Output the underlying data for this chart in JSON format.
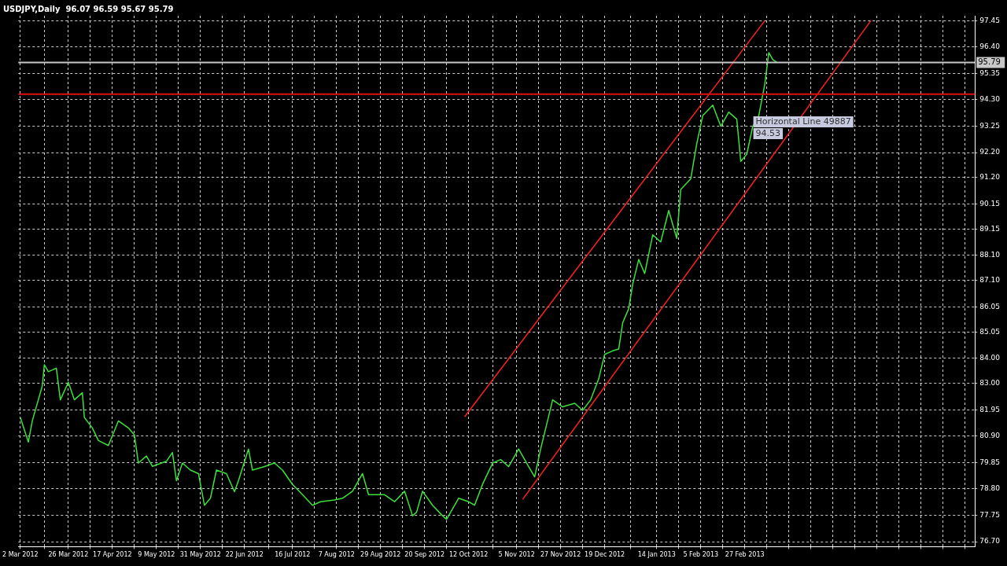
{
  "chart_data": {
    "type": "line",
    "title": "USDJPY,Daily  96.07 96.59 95.67 95.79",
    "xlim": [
      "2012-03-01",
      "2013-06-22"
    ],
    "ylim": [
      76.5,
      97.65
    ],
    "xticks": [
      {
        "value": "2012-03-02",
        "label": "2 Mar 2012"
      },
      {
        "value": "2012-03-14",
        "label": null
      },
      {
        "value": "2012-03-26",
        "label": "26 Mar 2012"
      },
      {
        "value": "2012-04-06",
        "label": null
      },
      {
        "value": "2012-04-17",
        "label": "17 Apr 2012"
      },
      {
        "value": "2012-04-28",
        "label": null
      },
      {
        "value": "2012-05-09",
        "label": "9 May 2012"
      },
      {
        "value": "2012-05-20",
        "label": null
      },
      {
        "value": "2012-05-31",
        "label": "31 May 2012"
      },
      {
        "value": "2012-06-11",
        "label": null
      },
      {
        "value": "2012-06-22",
        "label": "22 Jun 2012"
      },
      {
        "value": "2012-07-04",
        "label": null
      },
      {
        "value": "2012-07-16",
        "label": "16 Jul 2012"
      },
      {
        "value": "2012-07-27",
        "label": null
      },
      {
        "value": "2012-08-07",
        "label": "7 Aug 2012"
      },
      {
        "value": "2012-08-18",
        "label": null
      },
      {
        "value": "2012-08-29",
        "label": "29 Aug 2012"
      },
      {
        "value": "2012-09-09",
        "label": null
      },
      {
        "value": "2012-09-20",
        "label": "20 Sep 2012"
      },
      {
        "value": "2012-10-01",
        "label": null
      },
      {
        "value": "2012-10-12",
        "label": "12 Oct 2012"
      },
      {
        "value": "2012-10-24",
        "label": null
      },
      {
        "value": "2012-11-05",
        "label": "5 Nov 2012"
      },
      {
        "value": "2012-11-16",
        "label": null
      },
      {
        "value": "2012-11-27",
        "label": "27 Nov 2012"
      },
      {
        "value": "2012-12-08",
        "label": null
      },
      {
        "value": "2012-12-19",
        "label": "19 Dec 2012"
      },
      {
        "value": "2013-01-01",
        "label": null
      },
      {
        "value": "2013-01-14",
        "label": "14 Jan 2013"
      },
      {
        "value": "2013-01-25",
        "label": null
      },
      {
        "value": "2013-02-05",
        "label": "5 Feb 2013"
      },
      {
        "value": "2013-02-16",
        "label": null
      },
      {
        "value": "2013-02-27",
        "label": "27 Feb 2013"
      },
      {
        "value": "2013-03-10",
        "label": null
      },
      {
        "value": "2013-03-21",
        "label": null
      },
      {
        "value": "2013-04-01",
        "label": null
      },
      {
        "value": "2013-04-12",
        "label": null
      },
      {
        "value": "2013-04-23",
        "label": null
      },
      {
        "value": "2013-05-04",
        "label": null
      },
      {
        "value": "2013-05-15",
        "label": null
      },
      {
        "value": "2013-05-26",
        "label": null
      },
      {
        "value": "2013-06-06",
        "label": null
      },
      {
        "value": "2013-06-17",
        "label": null
      }
    ],
    "yticks": [
      {
        "value": 76.7,
        "label": "76.70"
      },
      77.75,
      {
        "value": 78.8,
        "label": "78.80"
      },
      79.85,
      {
        "value": 80.9,
        "label": "80.90"
      },
      81.95,
      {
        "value": 83,
        "label": "83.00"
      },
      {
        "value": 84,
        "label": "84.00"
      },
      85.05,
      86.05,
      {
        "value": 87.1,
        "label": "87.10"
      },
      {
        "value": 88.1,
        "label": "88.10"
      },
      89.15,
      90.15,
      {
        "value": 91.2,
        "label": "91.20"
      },
      {
        "value": 92.2,
        "label": "92.20"
      },
      93.25,
      {
        "value": 94.3,
        "label": "94.30"
      },
      95.35,
      {
        "value": 96.4,
        "label": "96.40"
      },
      97.45
    ],
    "grid": true,
    "legend": false,
    "marker": "none",
    "line_style": "solid",
    "series": [
      {
        "color": "#3ce03c",
        "x": [
          "2012-03-02",
          "2012-03-06",
          "2012-03-08",
          "2012-03-11",
          "2012-03-13",
          "2012-03-14",
          "2012-03-16",
          "2012-03-20",
          "2012-03-22",
          "2012-03-26",
          "2012-03-29",
          "2012-04-02",
          "2012-04-03",
          "2012-04-07",
          "2012-04-10",
          "2012-04-15",
          "2012-04-20",
          "2012-04-25",
          "2012-04-28",
          "2012-04-30",
          "2012-05-04",
          "2012-05-07",
          "2012-05-14",
          "2012-05-17",
          "2012-05-19",
          "2012-05-22",
          "2012-05-26",
          "2012-05-30",
          "2012-06-02",
          "2012-06-05",
          "2012-06-08",
          "2012-06-13",
          "2012-06-17",
          "2012-06-19",
          "2012-06-24",
          "2012-06-26",
          "2012-07-02",
          "2012-07-07",
          "2012-07-11",
          "2012-07-16",
          "2012-07-21",
          "2012-07-26",
          "2012-07-30",
          "2012-08-06",
          "2012-08-10",
          "2012-08-15",
          "2012-08-20",
          "2012-08-23",
          "2012-08-31",
          "2012-09-05",
          "2012-09-10",
          "2012-09-14",
          "2012-09-16",
          "2012-09-19",
          "2012-09-24",
          "2012-09-29",
          "2012-10-01",
          "2012-10-07",
          "2012-10-12",
          "2012-10-15",
          "2012-10-19",
          "2012-10-24",
          "2012-10-28",
          "2012-11-01",
          "2012-11-06",
          "2012-11-11",
          "2012-11-14",
          "2012-11-17",
          "2012-11-20",
          "2012-11-23",
          "2012-11-28",
          "2012-12-04",
          "2012-12-08",
          "2012-12-12",
          "2012-12-16",
          "2012-12-19",
          "2012-12-23",
          "2012-12-26",
          "2012-12-28",
          "2012-12-31",
          "2013-01-02",
          "2013-01-05",
          "2013-01-08",
          "2013-01-12",
          "2013-01-16",
          "2013-01-20",
          "2013-01-24",
          "2013-01-26",
          "2013-01-31",
          "2013-02-03",
          "2013-02-06",
          "2013-02-11",
          "2013-02-15",
          "2013-02-19",
          "2013-02-23",
          "2013-02-25",
          "2013-02-28",
          "2013-03-03",
          "2013-03-06",
          "2013-03-09",
          "2013-03-11",
          "2013-03-13",
          "2013-03-15"
        ],
        "values": [
          81.65,
          80.67,
          81.51,
          82.35,
          82.91,
          83.75,
          83.47,
          83.61,
          82.35,
          83.05,
          82.35,
          82.63,
          81.65,
          81.23,
          80.73,
          80.53,
          81.51,
          81.23,
          80.95,
          79.83,
          80.11,
          79.7,
          79.9,
          80.25,
          79.13,
          79.83,
          79.55,
          79.41,
          78.15,
          78.43,
          79.55,
          79.41,
          78.69,
          79.13,
          80.39,
          79.55,
          79.69,
          79.83,
          79.55,
          78.98,
          78.57,
          78.15,
          78.29,
          78.36,
          78.43,
          78.71,
          79.41,
          78.57,
          78.57,
          78.29,
          78.71,
          77.73,
          77.87,
          78.71,
          78.15,
          77.73,
          77.59,
          78.43,
          78.29,
          78.15,
          78.99,
          79.83,
          79.97,
          79.69,
          80.39,
          79.69,
          79.28,
          80.39,
          81.37,
          82.35,
          82.07,
          82.21,
          81.93,
          82.35,
          83.18,
          84.16,
          84.3,
          84.37,
          85.42,
          85.98,
          86.96,
          87.94,
          87.38,
          88.92,
          88.64,
          89.89,
          88.78,
          90.73,
          91.15,
          92.55,
          93.67,
          94.09,
          93.25,
          93.81,
          93.53,
          91.85,
          92.13,
          93.25,
          93.67,
          94.92,
          96.18,
          95.9,
          95.79
        ]
      },
      {
        "color": "#ff2020",
        "x": [
          "2012-10-10",
          "2013-03-09"
        ],
        "values": [
          81.67,
          97.45
        ]
      },
      {
        "color": "#ff2020",
        "x": [
          "2012-11-08",
          "2013-05-01"
        ],
        "values": [
          78.38,
          97.45
        ]
      }
    ],
    "ref_lines": [
      {
        "axis": "y",
        "value": 94.53,
        "color": "#e01010"
      },
      {
        "axis": "y",
        "value": 95.79,
        "label": "95.79",
        "color": "#c8c8c8"
      }
    ],
    "annotations": [
      "Horizontal Line 49887",
      "94.53"
    ]
  }
}
